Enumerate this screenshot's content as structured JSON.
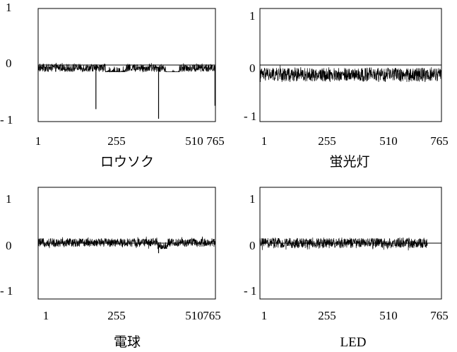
{
  "chart_data": [
    {
      "type": "line",
      "xlabel": "ロウソク",
      "x_ticks": [
        "1",
        "255",
        "510",
        "765"
      ],
      "y_ticks": [
        "1",
        "0",
        "- 1"
      ],
      "xlim": [
        1,
        765
      ],
      "ylim": [
        -1,
        1
      ],
      "noise_band": [
        -0.12,
        0.05
      ],
      "segments": [
        {
          "x": [
            290,
            380
          ],
          "offset": -0.08
        },
        {
          "x": [
            550,
            610
          ],
          "offset": -0.18
        }
      ],
      "spikes": [
        {
          "x": 250,
          "y": -0.78
        },
        {
          "x": 520,
          "y": -0.95
        },
        {
          "x": 763,
          "y": -0.72
        }
      ],
      "series": [
        {
          "x": [
            1,
            765
          ],
          "y": [
            -0.05,
            -0.05
          ]
        }
      ]
    },
    {
      "type": "line",
      "xlabel": "蛍光灯",
      "x_ticks": [
        "1",
        "255",
        "510",
        "765"
      ],
      "y_ticks": [
        "1",
        "0",
        "- 1"
      ],
      "xlim": [
        1,
        765
      ],
      "ylim": [
        -1,
        1
      ],
      "noise_band": [
        -0.3,
        0.0
      ],
      "segments": [],
      "spikes": [],
      "series": [
        {
          "x": [
            1,
            765
          ],
          "y": [
            -0.17,
            -0.17
          ]
        }
      ]
    },
    {
      "type": "line",
      "xlabel": "電球",
      "x_ticks": [
        "1",
        "255",
        "510",
        "765"
      ],
      "y_ticks": [
        "1",
        "0",
        "- 1"
      ],
      "xlim": [
        1,
        765
      ],
      "ylim": [
        -1,
        1
      ],
      "noise_band": [
        -0.1,
        0.12
      ],
      "segments": [
        {
          "x": [
            515,
            560
          ],
          "offset": -0.08
        }
      ],
      "spikes": [
        {
          "x": 520,
          "y": -0.18
        }
      ],
      "series": [
        {
          "x": [
            1,
            765
          ],
          "y": [
            0.01,
            0.01
          ]
        }
      ]
    },
    {
      "type": "line",
      "xlabel": "LED",
      "x_ticks": [
        "1",
        "255",
        "510",
        "765"
      ],
      "y_ticks": [
        "1",
        "0",
        "- 1"
      ],
      "xlim": [
        1,
        765
      ],
      "ylim": [
        -1,
        1
      ],
      "noise_band": [
        -0.13,
        0.1
      ],
      "segments": [],
      "spikes": [],
      "flat_from": 705,
      "series": [
        {
          "x": [
            1,
            765
          ],
          "y": [
            0.0,
            0.0
          ]
        }
      ]
    }
  ]
}
